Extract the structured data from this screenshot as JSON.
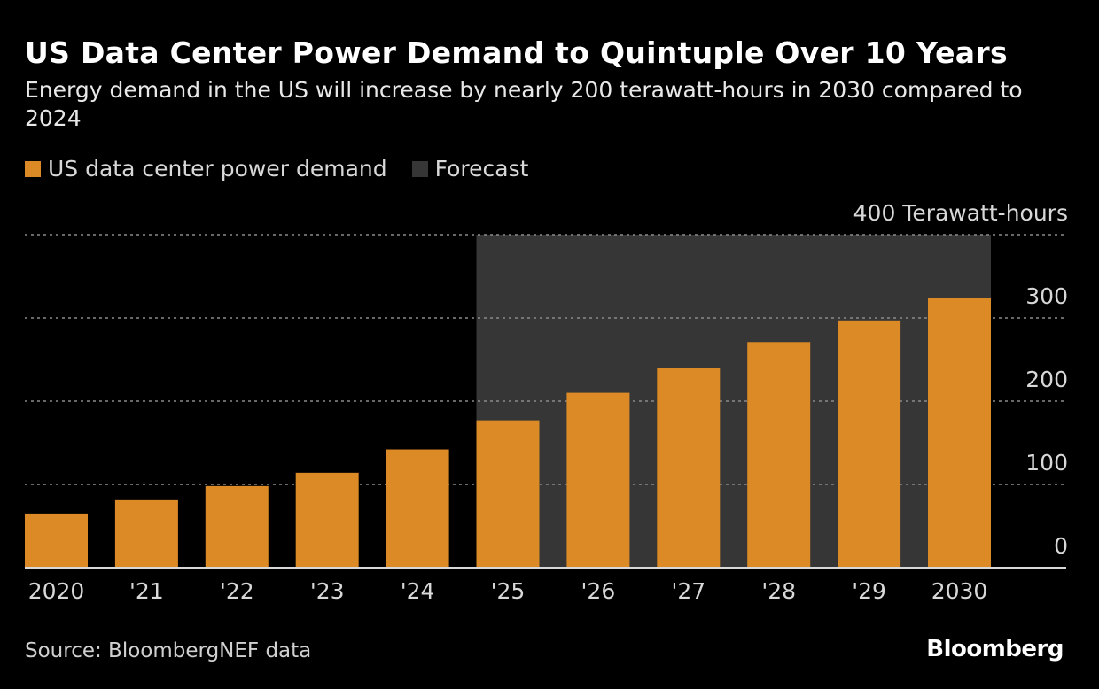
{
  "title": "US Data Center Power Demand to Quintuple Over 10 Years",
  "subtitle": "Energy demand in the US will increase by nearly 200 terawatt-hours in 2030 compared to 2024",
  "source": "Source: BloombergNEF data",
  "logo": "Bloomberg",
  "colors": {
    "bar": "#db8a26",
    "forecast_band": "#363636",
    "background": "#000000",
    "grid": "#8a8a8a"
  },
  "chart_data": {
    "type": "bar",
    "title": "US Data Center Power Demand to Quintuple Over 10 Years",
    "categories": [
      "2020",
      "'21",
      "'22",
      "'23",
      "'24",
      "'25",
      "'26",
      "'27",
      "'28",
      "'29",
      "2030"
    ],
    "series": [
      {
        "name": "US data center power demand",
        "values": [
          65,
          81,
          98,
          114,
          142,
          177,
          210,
          240,
          271,
          297,
          324
        ]
      }
    ],
    "forecast": {
      "label": "Forecast",
      "from": "'25",
      "to": "2030"
    },
    "legend": [
      "US data center power demand",
      "Forecast"
    ],
    "legend_position": "top-left",
    "ylabel": "Terawatt-hours",
    "ylim": [
      0,
      400
    ],
    "yticks": [
      0,
      100,
      200,
      300,
      400
    ],
    "ytick_labels": [
      "0",
      "100",
      "200",
      "300",
      "400 Terawatt-hours"
    ],
    "y_axis_side": "right",
    "grid": true
  }
}
